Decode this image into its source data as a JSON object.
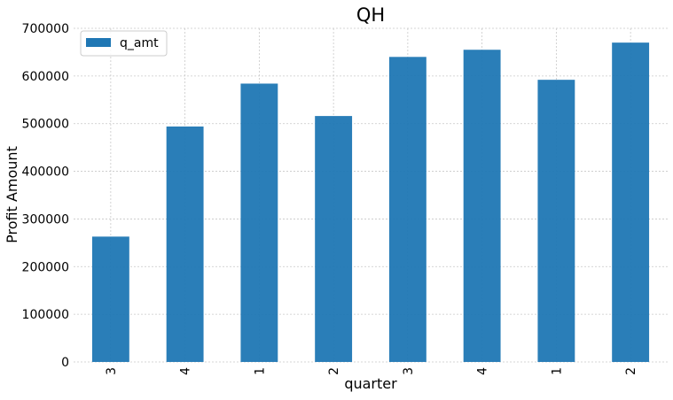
{
  "chart_data": {
    "type": "bar",
    "title": "QH",
    "xlabel": "quarter",
    "ylabel": "Profit Amount",
    "categories": [
      "3",
      "4",
      "1",
      "2",
      "3",
      "4",
      "1",
      "2"
    ],
    "series": [
      {
        "name": "q_amt",
        "values": [
          263000,
          494000,
          584000,
          516000,
          640000,
          655000,
          592000,
          670000
        ],
        "color": "#1f77b4"
      }
    ],
    "ylim": [
      0,
      700000
    ],
    "yticks": [
      "0",
      "100000",
      "200000",
      "300000",
      "400000",
      "500000",
      "600000",
      "700000"
    ],
    "grid": true,
    "legend_position": "top-left"
  }
}
